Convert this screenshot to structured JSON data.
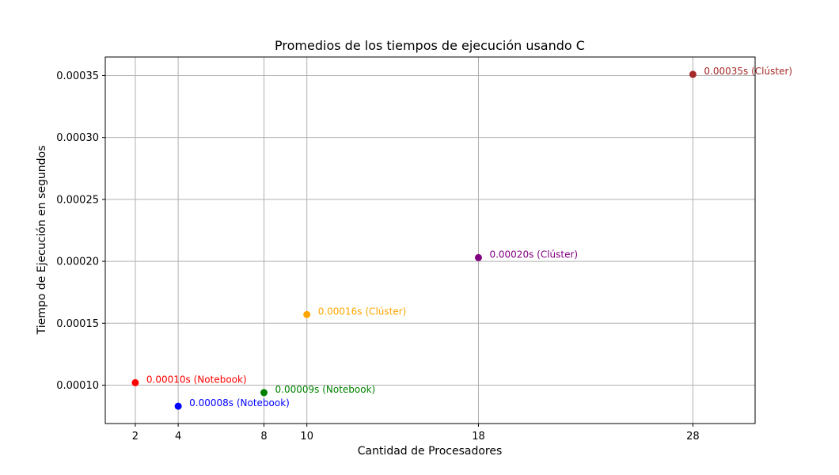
{
  "chart_data": {
    "type": "scatter",
    "title": "Promedios de los tiempos de ejecución usando C",
    "xlabel": "Cantidad de Procesadores",
    "ylabel": "Tiempo de Ejecución en segundos",
    "xlim": [
      0.6,
      30.9
    ],
    "ylim": [
      6.9e-05,
      0.000365
    ],
    "xticks": [
      2,
      4,
      8,
      10,
      18,
      28
    ],
    "yticks": [
      "0.00010",
      "0.00015",
      "0.00020",
      "0.00025",
      "0.00030",
      "0.00035"
    ],
    "grid": true,
    "points": [
      {
        "x": 2,
        "y": 0.000102,
        "label": "0.00010s (Notebook)",
        "color": "#ff0000"
      },
      {
        "x": 4,
        "y": 8.3e-05,
        "label": "0.00008s (Notebook)",
        "color": "#0000ff"
      },
      {
        "x": 8,
        "y": 9.4e-05,
        "label": "0.00009s (Notebook)",
        "color": "#008000"
      },
      {
        "x": 10,
        "y": 0.000157,
        "label": "0.00016s (Clúster)",
        "color": "#ffa500"
      },
      {
        "x": 18,
        "y": 0.000203,
        "label": "0.00020s (Clúster)",
        "color": "#800080"
      },
      {
        "x": 28,
        "y": 0.000351,
        "label": "0.00035s (Clúster)",
        "color": "#a52a2a"
      }
    ]
  }
}
